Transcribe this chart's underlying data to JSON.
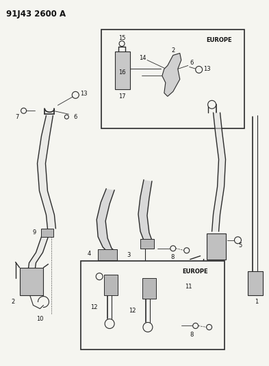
{
  "title": "91J43 2600 A",
  "bg": "#f5f5f0",
  "lc": "#2a2a2a",
  "figsize": [
    3.93,
    5.33
  ],
  "dpi": 100
}
